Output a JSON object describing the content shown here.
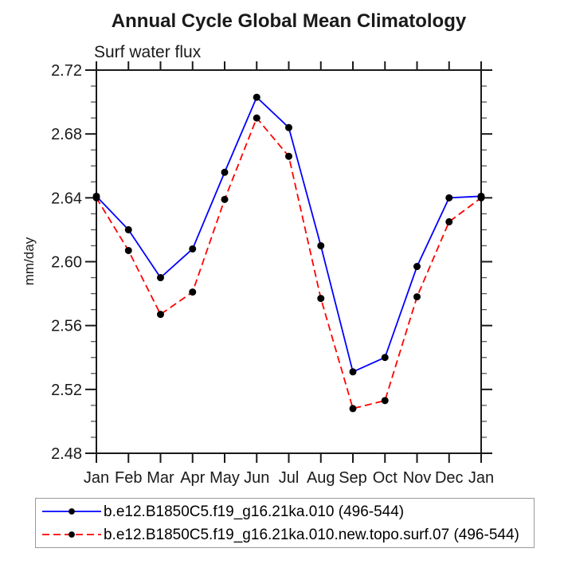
{
  "chart_data": {
    "type": "line",
    "title": "Annual Cycle Global Mean Climatology",
    "subtitle": "Surf water flux",
    "ylabel": "mm/day",
    "xlabel": "",
    "categories": [
      "Jan",
      "Feb",
      "Mar",
      "Apr",
      "May",
      "Jun",
      "Jul",
      "Aug",
      "Sep",
      "Oct",
      "Nov",
      "Dec",
      "Jan"
    ],
    "ylim": [
      2.48,
      2.72
    ],
    "y_major_ticks": [
      2.48,
      2.52,
      2.56,
      2.6,
      2.64,
      2.68,
      2.72
    ],
    "y_minor_step": 0.01,
    "grid": false,
    "legend_position": "bottom-left",
    "marker": "filled-circle",
    "marker_color": "#000000",
    "series": [
      {
        "name": "b.e12.B1850C5.f19_g16.21ka.010 (496-544)",
        "color": "#0000ff",
        "style": "solid",
        "values": [
          2.641,
          2.62,
          2.59,
          2.608,
          2.656,
          2.703,
          2.684,
          2.61,
          2.531,
          2.54,
          2.597,
          2.64,
          2.641
        ]
      },
      {
        "name": "b.e12.B1850C5.f19_g16.21ka.010.new.topo.surf.07 (496-544)",
        "color": "#ff0000",
        "style": "dashed",
        "values": [
          2.64,
          2.607,
          2.567,
          2.581,
          2.639,
          2.69,
          2.666,
          2.577,
          2.508,
          2.513,
          2.578,
          2.625,
          2.64
        ]
      }
    ]
  }
}
